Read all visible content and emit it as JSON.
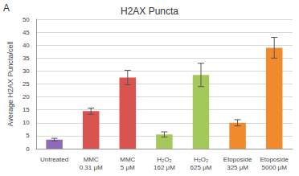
{
  "chart_data": {
    "type": "bar",
    "title": "H2AX Puncta",
    "annotations": [
      "A"
    ],
    "y_label": "Average H2AX Puncta/cell",
    "categories": [
      "Untreated",
      "MMC\n0.31 μM",
      "MMC\n5 μM",
      "H₂O₂\n162 μM",
      "H₂O₂\n625 μM",
      "Etoposide\n325 μM",
      "Etoposide\n5000 μM"
    ],
    "values": [
      3.5,
      14.5,
      27.5,
      5.5,
      28.5,
      10,
      39
    ],
    "errors": [
      0.5,
      1.2,
      2.8,
      1.0,
      4.5,
      1.2,
      4.0
    ],
    "colors": [
      "#8e6bb8",
      "#d9534f",
      "#d9534f",
      "#a5c85a",
      "#a5c85a",
      "#f08a2c",
      "#f08a2c"
    ],
    "ylim": [
      0,
      50
    ],
    "yticks": [
      0,
      5,
      10,
      15,
      20,
      25,
      30,
      35,
      40,
      45,
      50
    ],
    "grid": true
  }
}
